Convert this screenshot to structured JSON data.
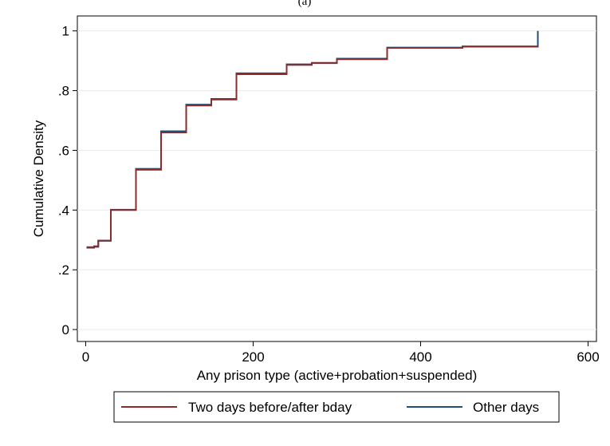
{
  "panel_label": "(a)",
  "chart_data": {
    "type": "line",
    "step": true,
    "xlabel": "Any prison type (active+probation+suspended)",
    "ylabel": "Cumulative Density",
    "xlim": [
      -10,
      610
    ],
    "ylim": [
      -0.04,
      1.05
    ],
    "xticks": [
      0,
      200,
      400,
      600
    ],
    "xtick_labels": [
      "0",
      "200",
      "400",
      "600"
    ],
    "yticks": [
      0,
      0.2,
      0.4,
      0.6,
      0.8,
      1
    ],
    "ytick_labels": [
      "0",
      ".2",
      ".4",
      ".6",
      ".8",
      "1"
    ],
    "grid": true,
    "legend_position": "bottom",
    "series": [
      {
        "name": "Other days",
        "color": "#1f4e79",
        "x": [
          1,
          10,
          15,
          30,
          60,
          90,
          120,
          150,
          180,
          240,
          270,
          300,
          360,
          450,
          540
        ],
        "y": [
          0.274,
          0.277,
          0.297,
          0.401,
          0.538,
          0.664,
          0.753,
          0.772,
          0.858,
          0.888,
          0.893,
          0.907,
          0.944,
          0.948,
          1.0
        ]
      },
      {
        "name": "Two days before/after bday",
        "color": "#8b2c2c",
        "x": [
          1,
          10,
          15,
          30,
          60,
          90,
          120,
          150,
          180,
          240,
          270,
          300,
          360,
          450,
          540
        ],
        "y": [
          0.276,
          0.279,
          0.298,
          0.4,
          0.535,
          0.66,
          0.75,
          0.77,
          0.855,
          0.886,
          0.892,
          0.905,
          0.943,
          0.947,
          0.95
        ]
      }
    ]
  }
}
